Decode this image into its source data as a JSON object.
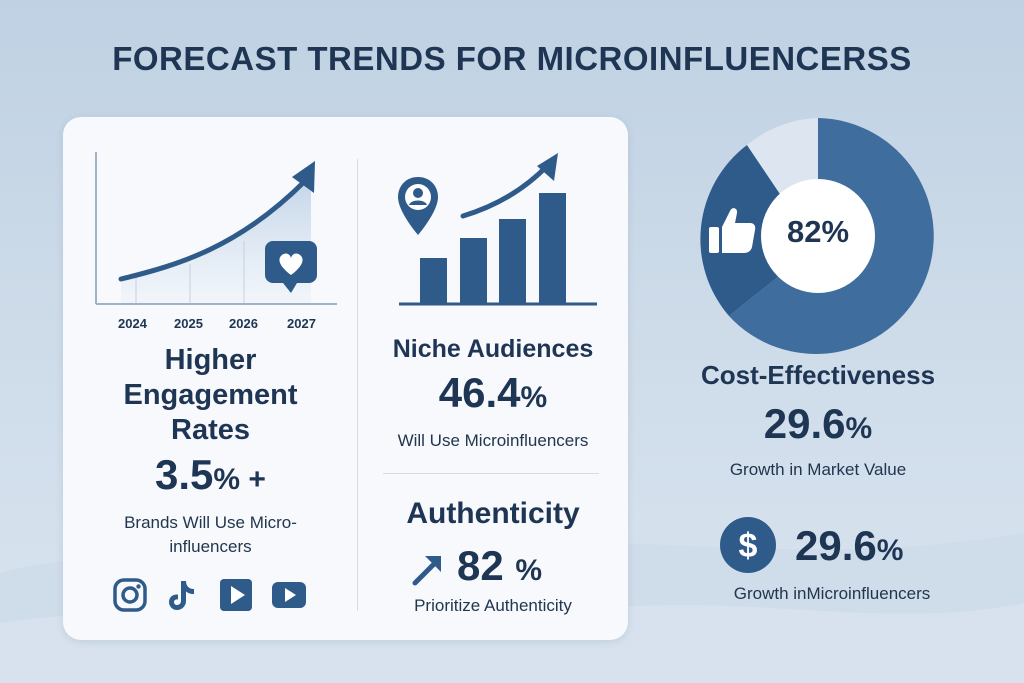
{
  "title": "FORECAST TRENDS FOR MICROINFLUENCERSS",
  "engagement": {
    "years": [
      "2024",
      "2025",
      "2026",
      "2027"
    ],
    "heading_lines": [
      "Higher",
      "Engagement",
      "Rates"
    ],
    "value": "3.5",
    "value_suffix": "% +",
    "desc_lines": [
      "Brands Will Use Micro-",
      "influencers"
    ],
    "icons": [
      "heart-icon",
      "instagram-icon",
      "tiktok-icon",
      "play-icon",
      "youtube-icon"
    ]
  },
  "niche": {
    "heading": "Niche Audiences",
    "value": "46.4",
    "value_suffix": "%",
    "desc": "Will Use Microinfluencers",
    "icons": [
      "user-pin-icon",
      "trend-arrow-icon"
    ]
  },
  "authenticity": {
    "heading": "Authenticity",
    "value": "82",
    "value_suffix": "%",
    "desc": "Prioritize Authenticity",
    "icons": [
      "up-right-arrow-icon"
    ]
  },
  "cost": {
    "donut_label": "82%",
    "heading": "Cost-Effectiveness",
    "value": "29.6",
    "value_suffix": "%",
    "desc": "Growth in Market Value",
    "icons": [
      "thumbs-up-icon"
    ]
  },
  "growth": {
    "value": "29.6",
    "value_suffix": "%",
    "desc_a": "Growth",
    "desc_b": "in",
    "desc_c": "Microinfluencers",
    "icons": [
      "dollar-icon"
    ]
  },
  "colors": {
    "navy": "#1f3554",
    "blue": "#2f5b8a",
    "mid_blue": "#4a78a8",
    "light": "#dfe7f1"
  }
}
